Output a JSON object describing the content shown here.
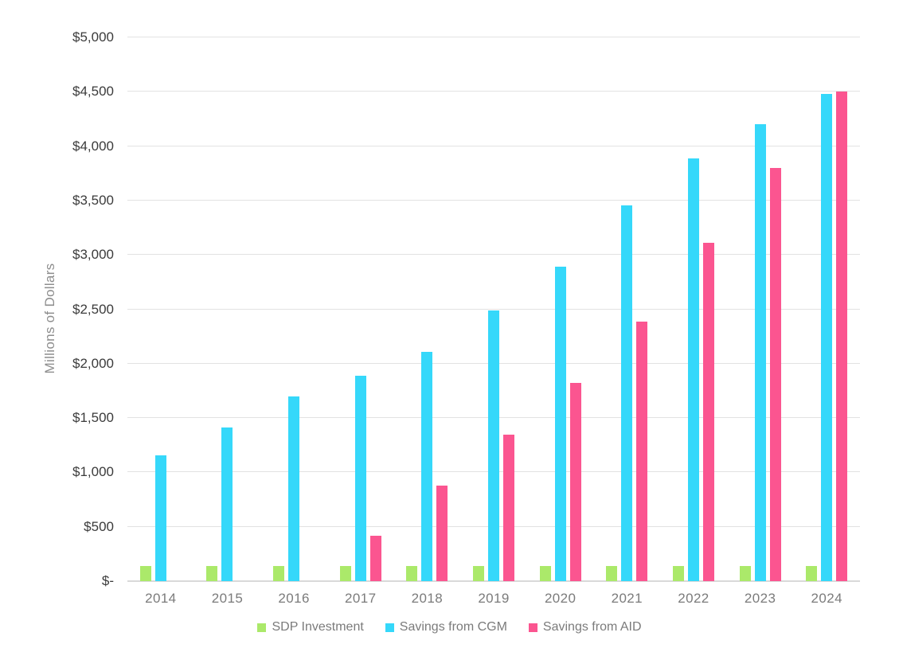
{
  "chart_data": {
    "type": "bar",
    "title": "",
    "xlabel": "",
    "ylabel": "Millions of Dollars",
    "ylim": [
      0,
      5000
    ],
    "grid": true,
    "legend_position": "bottom",
    "y_ticks": [
      {
        "value": 5000,
        "label": "$5,000"
      },
      {
        "value": 4500,
        "label": "$4,500"
      },
      {
        "value": 4000,
        "label": "$4,000"
      },
      {
        "value": 3500,
        "label": "$3,500"
      },
      {
        "value": 3000,
        "label": "$3,000"
      },
      {
        "value": 2500,
        "label": "$2,500"
      },
      {
        "value": 2000,
        "label": "$2,000"
      },
      {
        "value": 1500,
        "label": "$1,500"
      },
      {
        "value": 1000,
        "label": "$1,000"
      },
      {
        "value": 500,
        "label": "$500"
      },
      {
        "value": 0,
        "label": "$-"
      }
    ],
    "categories": [
      "2014",
      "2015",
      "2016",
      "2017",
      "2018",
      "2019",
      "2020",
      "2021",
      "2022",
      "2023",
      "2024"
    ],
    "series": [
      {
        "name": "SDP Investment",
        "color": "#abe96a",
        "values": [
          140,
          140,
          140,
          140,
          140,
          140,
          140,
          140,
          140,
          140,
          140
        ]
      },
      {
        "name": "Savings from CGM",
        "color": "#35d8fa",
        "values": [
          1160,
          1415,
          1700,
          1890,
          2105,
          2490,
          2890,
          3455,
          3885,
          4200,
          4480
        ]
      },
      {
        "name": "Savings from AID",
        "color": "#fb5590",
        "values": [
          0,
          0,
          0,
          420,
          875,
          1345,
          1820,
          2390,
          3115,
          3800,
          4505
        ]
      }
    ],
    "colors": {
      "gridline": "#e2e2e2",
      "axis_line": "#d9d9d9",
      "y_tick_text": "#3b3b3b",
      "x_tick_text": "#7b7b7b",
      "legend_text": "#7b7b7b",
      "axis_title_text": "#8d8d8d"
    }
  }
}
